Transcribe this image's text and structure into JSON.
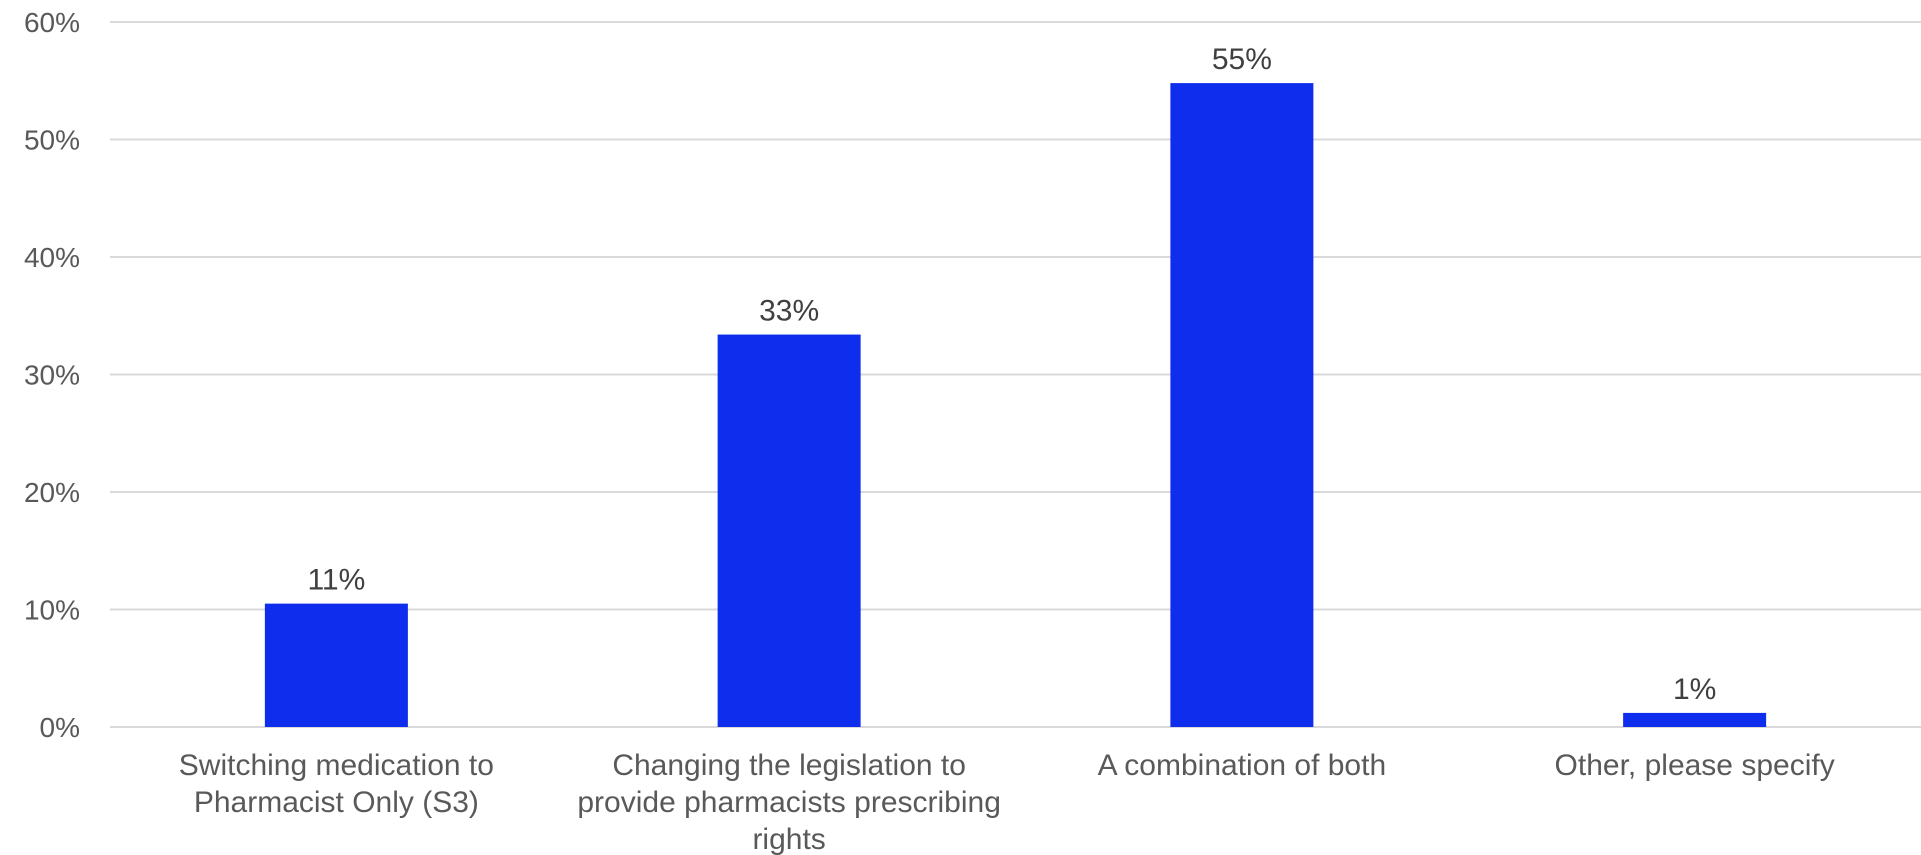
{
  "chart_data": {
    "type": "bar",
    "categories": [
      [
        "Switching medication to",
        "Pharmacist Only (S3)"
      ],
      [
        "Changing the legislation to",
        "provide pharmacists prescribing",
        "rights"
      ],
      [
        "A combination of both"
      ],
      [
        "Other, please specify"
      ]
    ],
    "values": [
      10.5,
      33.4,
      54.8,
      1.2
    ],
    "data_labels": [
      "11%",
      "33%",
      "55%",
      "1%"
    ],
    "ylim": [
      0,
      60
    ],
    "y_ticks": [
      "0%",
      "10%",
      "20%",
      "30%",
      "40%",
      "50%",
      "60%"
    ],
    "grid": true,
    "bar_color": "#0f2ded",
    "title": "",
    "xlabel": "",
    "ylabel": ""
  }
}
